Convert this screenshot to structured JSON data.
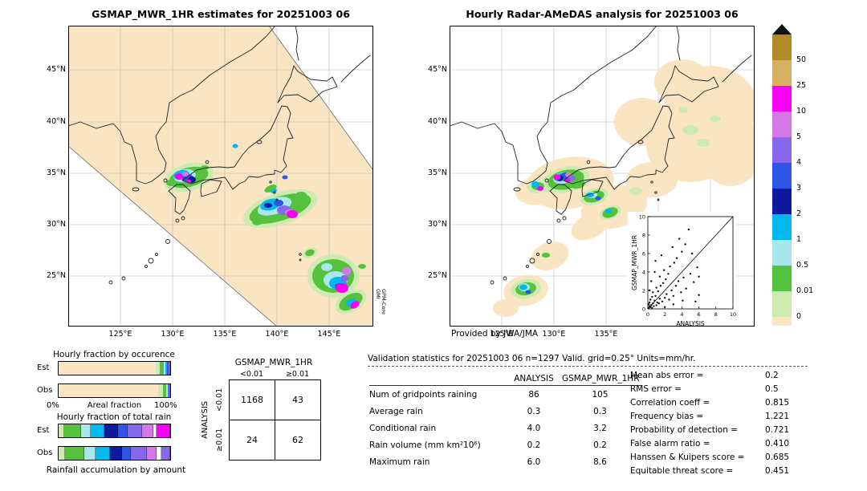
{
  "palette": {
    "peach": "#fae5c3",
    "lgreen": "#cdeab0",
    "green": "#54c23c",
    "pcyan": "#a8e7ee",
    "cyan": "#00b8ee",
    "navy": "#0d1a9e",
    "blue": "#2e55e6",
    "purple": "#8668ec",
    "orchid": "#d478e8",
    "magenta": "#f800f8",
    "tan": "#d8b061",
    "olive": "#b28a28",
    "white": "#ffffff",
    "triangle": "#111111"
  },
  "left_map": {
    "title": "GSMAP_MWR_1HR estimates for 20251003 06",
    "lat_labels": [
      "45°N",
      "40°N",
      "35°N",
      "30°N",
      "25°N"
    ],
    "lon_labels": [
      "125°E",
      "130°E",
      "135°E",
      "140°E",
      "145°E"
    ],
    "side_label_1": "GPM-Core",
    "side_label_2": "GMI",
    "rain_blobs": [
      [
        150,
        189,
        32,
        17,
        "lgreen",
        -15
      ],
      [
        264,
        228,
        48,
        20,
        "lgreen",
        -18
      ],
      [
        330,
        312,
        32,
        27,
        "lgreen",
        0
      ],
      [
        352,
        344,
        21,
        13,
        "lgreen",
        -30
      ],
      [
        301,
        283,
        10,
        6,
        "lgreen",
        -20
      ],
      [
        238,
        243,
        13,
        7,
        "lgreen",
        -20
      ],
      [
        170,
        177,
        8,
        5,
        "lgreen",
        0
      ],
      [
        150,
        189,
        25,
        12,
        "green",
        -15
      ],
      [
        264,
        228,
        40,
        15,
        "green",
        -18
      ],
      [
        330,
        312,
        26,
        21,
        "green",
        0
      ],
      [
        352,
        344,
        16,
        9,
        "green",
        -30
      ],
      [
        238,
        243,
        9,
        5,
        "green",
        -20
      ],
      [
        170,
        177,
        5,
        3,
        "green",
        0
      ],
      [
        128,
        196,
        6,
        4,
        "green",
        0
      ],
      [
        290,
        211,
        7,
        4,
        "green",
        0
      ],
      [
        301,
        283,
        6,
        4,
        "green",
        -20
      ],
      [
        366,
        300,
        5,
        3,
        "green",
        0
      ],
      [
        252,
        203,
        8,
        4,
        "green",
        -25
      ],
      [
        145,
        187,
        14,
        8,
        "pcyan",
        -10
      ],
      [
        257,
        225,
        22,
        10,
        "pcyan",
        -18
      ],
      [
        333,
        317,
        15,
        11,
        "pcyan",
        0
      ],
      [
        322,
        301,
        7,
        5,
        "pcyan",
        0
      ],
      [
        141,
        186,
        10,
        6,
        "cyan",
        -10
      ],
      [
        252,
        223,
        13,
        7,
        "cyan",
        -15
      ],
      [
        336,
        321,
        11,
        8,
        "cyan",
        0
      ],
      [
        352,
        345,
        7,
        4,
        "cyan",
        -30
      ],
      [
        208,
        150,
        3.5,
        2.5,
        "cyan",
        0
      ],
      [
        256,
        206,
        4,
        2.5,
        "cyan",
        -25
      ],
      [
        149,
        190,
        7,
        5,
        "blue",
        0
      ],
      [
        262,
        221,
        6,
        4,
        "blue",
        0
      ],
      [
        338,
        325,
        6,
        4,
        "blue",
        0
      ],
      [
        270,
        189,
        3.5,
        2.5,
        "blue",
        0
      ],
      [
        154,
        192,
        5,
        4,
        "navy",
        0
      ],
      [
        249,
        224,
        5,
        3,
        "navy",
        0
      ],
      [
        269,
        230,
        9,
        6,
        "purple",
        0
      ],
      [
        344,
        315,
        5,
        4,
        "purple",
        0
      ],
      [
        146,
        185,
        4,
        3,
        "orchid",
        0
      ],
      [
        276,
        233,
        6,
        4,
        "orchid",
        0
      ],
      [
        347,
        306,
        6,
        5,
        "orchid",
        0
      ],
      [
        138,
        188,
        5,
        4,
        "magenta",
        0
      ],
      [
        279,
        235,
        7,
        5,
        "magenta",
        0
      ],
      [
        341,
        327,
        8,
        6,
        "magenta",
        0
      ],
      [
        357,
        348,
        6,
        4,
        "magenta",
        -30
      ],
      [
        150,
        194,
        3,
        2.5,
        "magenta",
        0
      ]
    ]
  },
  "right_map": {
    "title": "Hourly Radar-AMeDAS analysis for 20251003 06",
    "lat_labels": [
      "45°N",
      "40°N",
      "35°N",
      "30°N",
      "25°N"
    ],
    "lon_labels": [
      "125°E",
      "130°E",
      "135°E"
    ],
    "credit": "Provided by JWA/JMA",
    "inset": {
      "xlabel": "ANALYSIS",
      "ylabel": "GSMAP_MWR_1HR",
      "ticks": [
        "0",
        "2",
        "4",
        "6",
        "8",
        "10"
      ]
    },
    "coverage_blobs": [
      [
        150,
        196,
        55,
        32,
        "peach",
        -8
      ],
      [
        205,
        226,
        42,
        26,
        "peach",
        -15
      ],
      [
        252,
        192,
        32,
        22,
        "peach",
        0
      ],
      [
        300,
        150,
        55,
        45,
        "peach",
        0
      ],
      [
        325,
        100,
        58,
        50,
        "peach",
        0
      ],
      [
        350,
        155,
        40,
        45,
        "peach",
        0
      ],
      [
        290,
        70,
        35,
        28,
        "peach",
        0
      ],
      [
        240,
        120,
        35,
        30,
        "peach",
        0
      ],
      [
        110,
        205,
        28,
        18,
        "peach",
        -10
      ],
      [
        125,
        287,
        24,
        17,
        "peach",
        -20
      ],
      [
        95,
        330,
        28,
        19,
        "peach",
        -10
      ],
      [
        70,
        352,
        16,
        11,
        "peach",
        0
      ],
      [
        175,
        250,
        25,
        15,
        "peach",
        -25
      ]
    ],
    "rain_blobs": [
      [
        145,
        192,
        30,
        16,
        "lgreen",
        -12
      ],
      [
        180,
        213,
        18,
        10,
        "lgreen",
        -15
      ],
      [
        200,
        233,
        14,
        8,
        "lgreen",
        -20
      ],
      [
        95,
        328,
        19,
        12,
        "lgreen",
        -10
      ],
      [
        110,
        200,
        14,
        9,
        "lgreen",
        0
      ],
      [
        300,
        130,
        10,
        6,
        "lgreen",
        0
      ],
      [
        316,
        146,
        8,
        5,
        "lgreen",
        0
      ],
      [
        331,
        116,
        7,
        4,
        "lgreen",
        0
      ],
      [
        291,
        105,
        6,
        4,
        "lgreen",
        0
      ],
      [
        232,
        206,
        8,
        5,
        "lgreen",
        0
      ],
      [
        120,
        286,
        7,
        4,
        "lgreen",
        0
      ],
      [
        145,
        192,
        23,
        12,
        "green",
        -12
      ],
      [
        180,
        213,
        13,
        7,
        "green",
        -15
      ],
      [
        200,
        233,
        10,
        6,
        "green",
        -20
      ],
      [
        95,
        328,
        13,
        8,
        "green",
        -10
      ],
      [
        110,
        200,
        8,
        5,
        "green",
        0
      ],
      [
        120,
        286,
        5,
        3,
        "green",
        0
      ],
      [
        160,
        198,
        9,
        5,
        "green",
        -10
      ],
      [
        141,
        190,
        12,
        7,
        "pcyan",
        -10
      ],
      [
        177,
        211,
        7,
        4,
        "pcyan",
        0
      ],
      [
        93,
        326,
        7,
        5,
        "pcyan",
        0
      ],
      [
        139,
        189,
        9,
        5,
        "cyan",
        -10
      ],
      [
        175,
        211,
        5,
        3,
        "cyan",
        0
      ],
      [
        92,
        326,
        5,
        3.5,
        "cyan",
        0
      ],
      [
        198,
        231,
        4,
        3,
        "cyan",
        0
      ],
      [
        107,
        198,
        5,
        4,
        "cyan",
        0
      ],
      [
        144,
        187,
        6,
        4,
        "blue",
        0
      ],
      [
        185,
        215,
        3.5,
        2.5,
        "blue",
        0
      ],
      [
        98,
        332,
        3.5,
        2.5,
        "blue",
        0
      ],
      [
        137,
        190,
        5,
        3.5,
        "navy",
        0
      ],
      [
        152,
        190,
        5,
        3.5,
        "purple",
        0
      ],
      [
        148,
        186,
        4,
        3,
        "orchid",
        0
      ],
      [
        134,
        189,
        4.5,
        3.5,
        "magenta",
        0
      ],
      [
        147,
        193,
        3.5,
        2.5,
        "magenta",
        0
      ],
      [
        113,
        203,
        4,
        3,
        "magenta",
        0
      ]
    ]
  },
  "colorbar": {
    "labels": [
      "50",
      "25",
      "10",
      "5",
      "4",
      "3",
      "2",
      "1",
      "0.5",
      "0.01",
      "0"
    ],
    "colors": [
      "#b28a28",
      "#d8b061",
      "#f800f8",
      "#d478e8",
      "#8668ec",
      "#2e55e6",
      "#0d1a9e",
      "#00b8ee",
      "#a8e7ee",
      "#54c23c",
      "#cdeab0",
      "#fae5c3"
    ]
  },
  "occurrence": {
    "title": "Hourly fraction by occurence",
    "row_labels": [
      "Est",
      "Obs"
    ],
    "x_min": "0%",
    "x_max": "100%",
    "xlabel": "Areal fraction",
    "est": [
      [
        "peach",
        87
      ],
      [
        "lgreen",
        4
      ],
      [
        "green",
        3.2
      ],
      [
        "pcyan",
        1.8
      ],
      [
        "cyan",
        1.4
      ],
      [
        "blue",
        1.0
      ],
      [
        "purple",
        0.8
      ],
      [
        "magenta",
        0.8
      ]
    ],
    "obs": [
      [
        "peach",
        89
      ],
      [
        "lgreen",
        4.2
      ],
      [
        "green",
        3.0
      ],
      [
        "pcyan",
        1.4
      ],
      [
        "cyan",
        1.0
      ],
      [
        "blue",
        0.8
      ],
      [
        "purple",
        0.6
      ]
    ]
  },
  "total_rain": {
    "title": "Hourly fraction of total rain",
    "row_labels": [
      "Est",
      "Obs"
    ],
    "caption": "Rainfall accumulation by amount",
    "est": [
      [
        "lgreen",
        5
      ],
      [
        "green",
        15
      ],
      [
        "pcyan",
        9
      ],
      [
        "cyan",
        12
      ],
      [
        "navy",
        12
      ],
      [
        "blue",
        9
      ],
      [
        "purple",
        13
      ],
      [
        "orchid",
        10
      ],
      [
        "white",
        3
      ],
      [
        "magenta",
        12
      ]
    ],
    "obs": [
      [
        "lgreen",
        6
      ],
      [
        "green",
        17
      ],
      [
        "pcyan",
        10
      ],
      [
        "cyan",
        13
      ],
      [
        "navy",
        11
      ],
      [
        "blue",
        8
      ],
      [
        "purple",
        14
      ],
      [
        "orchid",
        9
      ],
      [
        "white",
        4
      ],
      [
        "purple",
        8
      ]
    ]
  },
  "contingency": {
    "title": "GSMAP_MWR_1HR",
    "side": "ANALYSIS",
    "cols": [
      "<0.01",
      "≥0.01"
    ],
    "rows": [
      "<0.01",
      "≥0.01"
    ],
    "values": [
      [
        "1168",
        "43"
      ],
      [
        "24",
        "62"
      ]
    ]
  },
  "stats": {
    "header": "Validation statistics for 20251003 06  n=1297 Valid. grid=0.25° Units=mm/hr.",
    "col1": "ANALYSIS",
    "col2": "GSMAP_MWR_1HR",
    "rows": [
      {
        "label": "Num of gridpoints raining",
        "a": "86",
        "g": "105"
      },
      {
        "label": "Average rain",
        "a": "0.3",
        "g": "0.3"
      },
      {
        "label": "Conditional rain",
        "a": "4.0",
        "g": "3.2"
      },
      {
        "label": "Rain volume (mm km²10⁶)",
        "a": "0.2",
        "g": "0.2"
      },
      {
        "label": "Maximum rain",
        "a": "6.0",
        "g": "8.6"
      }
    ],
    "metrics": [
      {
        "label": "Mean abs error =",
        "value": "0.2"
      },
      {
        "label": "RMS error =",
        "value": "0.5"
      },
      {
        "label": "Correlation coeff =",
        "value": "0.815"
      },
      {
        "label": "Frequency bias =",
        "value": "1.221"
      },
      {
        "label": "Probability of detection =",
        "value": "0.721"
      },
      {
        "label": "False alarm ratio =",
        "value": "0.410"
      },
      {
        "label": "Hanssen & Kuipers score =",
        "value": "0.685"
      },
      {
        "label": "Equitable threat score =",
        "value": "0.451"
      }
    ]
  },
  "chart_data": [
    {
      "type": "heatmap",
      "name": "gsmap-mwr-estimate-map",
      "title": "GSMAP_MWR_1HR estimates for 20251003 06",
      "units": "mm/hr",
      "lat_ticks": [
        "45°N",
        "40°N",
        "35°N",
        "30°N",
        "25°N"
      ],
      "lon_ticks": [
        "125°E",
        "130°E",
        "135°E",
        "140°E",
        "145°E"
      ],
      "source": "GPM-Core GMI",
      "scale_bounds": [
        0,
        0.01,
        0.5,
        1,
        2,
        3,
        4,
        5,
        10,
        25,
        50
      ]
    },
    {
      "type": "heatmap",
      "name": "radar-amedas-analysis-map",
      "title": "Hourly Radar-AMeDAS analysis for 20251003 06",
      "units": "mm/hr",
      "credit": "Provided by JWA/JMA"
    },
    {
      "type": "scatter",
      "name": "validation-scatter",
      "xlabel": "ANALYSIS",
      "ylabel": "GSMAP_MWR_1HR",
      "xlim": [
        0,
        10
      ],
      "ylim": [
        0,
        10
      ],
      "identity_line": true,
      "points": [
        [
          0.1,
          0.1
        ],
        [
          0.2,
          0.3
        ],
        [
          0.3,
          0.2
        ],
        [
          0.1,
          0.5
        ],
        [
          0.5,
          0.1
        ],
        [
          0.4,
          0.4
        ],
        [
          0.2,
          0.7
        ],
        [
          0.7,
          0.3
        ],
        [
          0.6,
          0.6
        ],
        [
          0.3,
          1.0
        ],
        [
          1.0,
          0.4
        ],
        [
          0.8,
          0.9
        ],
        [
          1.1,
          0.7
        ],
        [
          0.5,
          1.3
        ],
        [
          1.3,
          0.6
        ],
        [
          0.9,
          1.4
        ],
        [
          1.4,
          1.1
        ],
        [
          0.6,
          1.8
        ],
        [
          1.7,
          0.8
        ],
        [
          1.2,
          1.9
        ],
        [
          2.0,
          1.2
        ],
        [
          1.0,
          2.3
        ],
        [
          2.2,
          1.6
        ],
        [
          1.5,
          2.5
        ],
        [
          2.5,
          1.0
        ],
        [
          1.8,
          2.8
        ],
        [
          2.8,
          2.0
        ],
        [
          2.1,
          3.2
        ],
        [
          3.0,
          1.4
        ],
        [
          1.4,
          3.5
        ],
        [
          3.3,
          2.5
        ],
        [
          2.4,
          3.8
        ],
        [
          3.6,
          3.0
        ],
        [
          3.9,
          1.8
        ],
        [
          1.9,
          4.2
        ],
        [
          4.2,
          3.4
        ],
        [
          2.6,
          4.6
        ],
        [
          4.5,
          2.2
        ],
        [
          3.1,
          5.0
        ],
        [
          5.0,
          3.8
        ],
        [
          3.4,
          5.5
        ],
        [
          5.4,
          2.9
        ],
        [
          4.0,
          6.2
        ],
        [
          5.8,
          4.5
        ],
        [
          4.4,
          7.0
        ],
        [
          6.0,
          3.5
        ],
        [
          2.9,
          6.7
        ],
        [
          5.2,
          6.0
        ],
        [
          3.7,
          7.6
        ],
        [
          4.8,
          8.6
        ],
        [
          6.0,
          1.5
        ],
        [
          5.6,
          0.8
        ],
        [
          0.2,
          2.0
        ],
        [
          2.0,
          0.2
        ],
        [
          0.4,
          3.0
        ],
        [
          3.0,
          0.5
        ],
        [
          0.8,
          4.0
        ],
        [
          4.1,
          0.9
        ],
        [
          1.6,
          5.8
        ],
        [
          0.9,
          5.2
        ]
      ]
    },
    {
      "type": "table",
      "name": "contingency-table",
      "title": "GSMAP_MWR_1HR",
      "row_axis": "ANALYSIS",
      "columns": [
        "<0.01",
        "≥0.01"
      ],
      "rows": [
        "<0.01",
        "≥0.01"
      ],
      "values": [
        [
          1168,
          43
        ],
        [
          24,
          62
        ]
      ]
    },
    {
      "type": "table",
      "name": "validation-statistics",
      "n": 1297,
      "grid": "0.25°",
      "units": "mm/hr",
      "columns": [
        "ANALYSIS",
        "GSMAP_MWR_1HR"
      ],
      "rows": [
        [
          "Num of gridpoints raining",
          86,
          105
        ],
        [
          "Average rain",
          0.3,
          0.3
        ],
        [
          "Conditional rain",
          4.0,
          3.2
        ],
        [
          "Rain volume (mm km²10⁶)",
          0.2,
          0.2
        ],
        [
          "Maximum rain",
          6.0,
          8.6
        ]
      ],
      "scores": {
        "Mean abs error": 0.2,
        "RMS error": 0.5,
        "Correlation coeff": 0.815,
        "Frequency bias": 1.221,
        "Probability of detection": 0.721,
        "False alarm ratio": 0.41,
        "Hanssen & Kuipers score": 0.685,
        "Equitable threat score": 0.451
      }
    },
    {
      "type": "bar",
      "name": "hourly-fraction-by-occurence",
      "stacked": true,
      "categories": [
        "Est",
        "Obs"
      ],
      "xlabel": "Areal fraction",
      "xlim": [
        "0%",
        "100%"
      ]
    },
    {
      "type": "bar",
      "name": "hourly-fraction-of-total-rain",
      "stacked": true,
      "categories": [
        "Est",
        "Obs"
      ],
      "caption": "Rainfall accumulation by amount"
    }
  ]
}
